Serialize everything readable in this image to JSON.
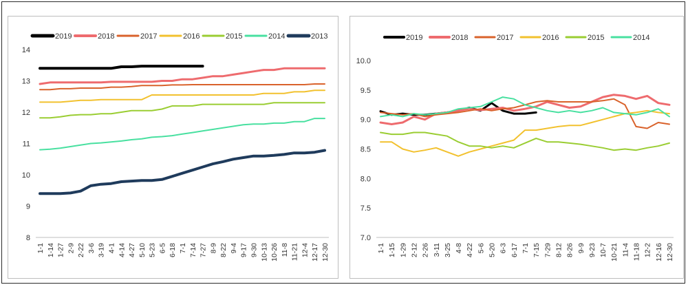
{
  "charts": [
    {
      "type": "line",
      "x_labels": [
        "1-1",
        "1-14",
        "1-27",
        "2-9",
        "2-22",
        "3-6",
        "3-19",
        "4-1",
        "4-14",
        "4-27",
        "5-10",
        "5-23",
        "6-5",
        "6-18",
        "7-1",
        "7-14",
        "7-27",
        "8-9",
        "8-22",
        "9-4",
        "9-17",
        "9-30",
        "10-13",
        "10-26",
        "11-8",
        "11-21",
        "12-4",
        "12-17",
        "12-30"
      ],
      "ylim": [
        8,
        14
      ],
      "yticks": [
        "8",
        "9",
        "10",
        "11",
        "12",
        "13",
        "14"
      ],
      "series": [
        {
          "name": "2019",
          "color": "#000000",
          "stroke_width": 4,
          "values": [
            13.4,
            13.4,
            13.4,
            13.4,
            13.4,
            13.4,
            13.4,
            13.4,
            13.45,
            13.45,
            13.47,
            13.47,
            13.47,
            13.47,
            13.47,
            13.47,
            13.47
          ]
        },
        {
          "name": "2018",
          "color": "#EE6B6E",
          "stroke_width": 3,
          "values": [
            12.9,
            12.95,
            12.95,
            12.95,
            12.95,
            12.95,
            12.95,
            12.97,
            12.97,
            12.97,
            12.97,
            12.97,
            13.0,
            13.0,
            13.05,
            13.05,
            13.1,
            13.15,
            13.15,
            13.2,
            13.25,
            13.3,
            13.35,
            13.35,
            13.4,
            13.4,
            13.4,
            13.4,
            13.4
          ]
        },
        {
          "name": "2017",
          "color": "#D9622B",
          "stroke_width": 2,
          "values": [
            12.72,
            12.72,
            12.75,
            12.75,
            12.77,
            12.77,
            12.77,
            12.8,
            12.8,
            12.82,
            12.85,
            12.85,
            12.85,
            12.87,
            12.87,
            12.88,
            12.88,
            12.88,
            12.88,
            12.88,
            12.88,
            12.88,
            12.88,
            12.88,
            12.88,
            12.88,
            12.88,
            12.9,
            12.9
          ]
        },
        {
          "name": "2016",
          "color": "#F2C12E",
          "stroke_width": 2,
          "values": [
            12.32,
            12.32,
            12.32,
            12.35,
            12.38,
            12.38,
            12.4,
            12.4,
            12.4,
            12.4,
            12.4,
            12.55,
            12.55,
            12.55,
            12.55,
            12.55,
            12.55,
            12.55,
            12.55,
            12.55,
            12.55,
            12.55,
            12.6,
            12.6,
            12.6,
            12.65,
            12.65,
            12.7,
            12.7
          ]
        },
        {
          "name": "2015",
          "color": "#9ACD32",
          "stroke_width": 2,
          "values": [
            11.82,
            11.82,
            11.85,
            11.9,
            11.92,
            11.92,
            11.95,
            11.95,
            12.0,
            12.05,
            12.05,
            12.05,
            12.1,
            12.2,
            12.2,
            12.2,
            12.25,
            12.25,
            12.25,
            12.25,
            12.25,
            12.25,
            12.25,
            12.3,
            12.3,
            12.3,
            12.3,
            12.3,
            12.3
          ]
        },
        {
          "name": "2014",
          "color": "#48E0A0",
          "stroke_width": 2,
          "values": [
            10.8,
            10.82,
            10.85,
            10.9,
            10.95,
            11.0,
            11.02,
            11.05,
            11.08,
            11.12,
            11.15,
            11.2,
            11.22,
            11.25,
            11.3,
            11.35,
            11.4,
            11.45,
            11.5,
            11.55,
            11.6,
            11.62,
            11.62,
            11.65,
            11.65,
            11.7,
            11.7,
            11.8,
            11.8
          ]
        },
        {
          "name": "2013",
          "color": "#1F3B5C",
          "stroke_width": 4,
          "values": [
            9.4,
            9.4,
            9.4,
            9.42,
            9.48,
            9.65,
            9.7,
            9.72,
            9.78,
            9.8,
            9.82,
            9.82,
            9.85,
            9.95,
            10.05,
            10.15,
            10.25,
            10.35,
            10.42,
            10.5,
            10.55,
            10.6,
            10.6,
            10.62,
            10.65,
            10.7,
            10.7,
            10.72,
            10.78
          ]
        }
      ]
    },
    {
      "type": "line",
      "x_labels": [
        "1-1",
        "1-15",
        "1-29",
        "2-12",
        "2-26",
        "3-11",
        "3-25",
        "4-8",
        "4-22",
        "5-6",
        "5-20",
        "6-3",
        "6-17",
        "7-1",
        "7-15",
        "7-29",
        "8-12",
        "8-26",
        "9-9",
        "9-23",
        "10-7",
        "10-21",
        "11-4",
        "11-18",
        "12-2",
        "12-16",
        "12-30"
      ],
      "ylim": [
        7.0,
        10.0
      ],
      "yticks": [
        "7.0",
        "7.5",
        "8.0",
        "8.5",
        "9.0",
        "9.5",
        "10.0"
      ],
      "series": [
        {
          "name": "2019",
          "color": "#000000",
          "stroke_width": 3,
          "values": [
            9.14,
            9.08,
            9.1,
            9.08,
            9.08,
            9.1,
            9.12,
            9.15,
            9.2,
            9.15,
            9.28,
            9.15,
            9.1,
            9.1,
            9.12
          ]
        },
        {
          "name": "2018",
          "color": "#EE6B6E",
          "stroke_width": 3,
          "values": [
            8.95,
            8.92,
            8.95,
            9.05,
            9.0,
            9.1,
            9.12,
            9.15,
            9.18,
            9.16,
            9.18,
            9.2,
            9.15,
            9.18,
            9.22,
            9.3,
            9.25,
            9.2,
            9.22,
            9.3,
            9.38,
            9.42,
            9.4,
            9.35,
            9.4,
            9.28,
            9.25
          ]
        },
        {
          "name": "2017",
          "color": "#D9622B",
          "stroke_width": 2,
          "values": [
            9.12,
            9.1,
            9.08,
            9.1,
            9.05,
            9.08,
            9.1,
            9.12,
            9.15,
            9.18,
            9.15,
            9.18,
            9.2,
            9.25,
            9.3,
            9.32,
            9.3,
            9.3,
            9.3,
            9.3,
            9.32,
            9.35,
            9.25,
            8.88,
            8.85,
            8.95,
            8.92
          ]
        },
        {
          "name": "2016",
          "color": "#F2C12E",
          "stroke_width": 2,
          "values": [
            8.62,
            8.62,
            8.5,
            8.45,
            8.48,
            8.52,
            8.45,
            8.38,
            8.45,
            8.5,
            8.55,
            8.6,
            8.65,
            8.82,
            8.82,
            8.85,
            8.88,
            8.9,
            8.9,
            8.95,
            9.0,
            9.05,
            9.1,
            9.12,
            9.15,
            9.12,
            9.1
          ]
        },
        {
          "name": "2015",
          "color": "#9ACD32",
          "stroke_width": 2,
          "values": [
            8.78,
            8.75,
            8.75,
            8.78,
            8.78,
            8.75,
            8.72,
            8.62,
            8.55,
            8.55,
            8.52,
            8.55,
            8.52,
            8.6,
            8.68,
            8.62,
            8.62,
            8.6,
            8.58,
            8.55,
            8.52,
            8.48,
            8.5,
            8.48,
            8.52,
            8.55,
            8.6
          ]
        },
        {
          "name": "2014",
          "color": "#48E0A0",
          "stroke_width": 2,
          "values": [
            9.05,
            9.08,
            9.05,
            9.1,
            9.08,
            9.1,
            9.12,
            9.18,
            9.2,
            9.22,
            9.3,
            9.38,
            9.35,
            9.25,
            9.2,
            9.15,
            9.12,
            9.15,
            9.12,
            9.15,
            9.2,
            9.12,
            9.1,
            9.08,
            9.12,
            9.18,
            9.05
          ]
        }
      ]
    }
  ]
}
